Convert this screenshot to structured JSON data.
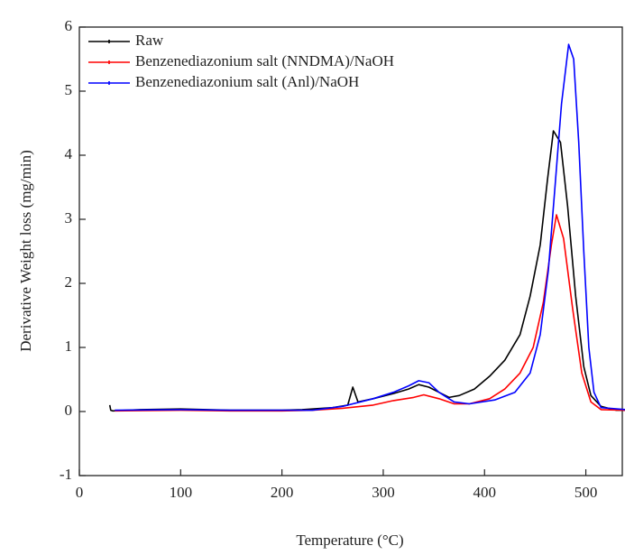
{
  "chart_data": {
    "type": "line",
    "x_label": "Temperature (°C)",
    "y_label": "Derivative Weight loss (mg/min)",
    "xlim": [
      0,
      536
    ],
    "ylim": [
      -1,
      6
    ],
    "xticks": [
      0,
      100,
      200,
      300,
      400,
      500
    ],
    "yticks": [
      -1,
      0,
      1,
      2,
      3,
      4,
      5,
      6
    ],
    "grid": false,
    "legend": "top-left",
    "series": [
      {
        "name": "Raw",
        "color": "#000000",
        "x": [
          30,
          31,
          33,
          60,
          100,
          150,
          200,
          220,
          250,
          265,
          270,
          275,
          290,
          310,
          325,
          335,
          345,
          355,
          365,
          375,
          390,
          405,
          420,
          435,
          445,
          455,
          462,
          468,
          475,
          482,
          490,
          498,
          505,
          515,
          530,
          540
        ],
        "values": [
          0.1,
          0.02,
          0.01,
          0.03,
          0.04,
          0.02,
          0.02,
          0.03,
          0.06,
          0.1,
          0.38,
          0.15,
          0.2,
          0.28,
          0.35,
          0.42,
          0.38,
          0.3,
          0.22,
          0.25,
          0.35,
          0.55,
          0.8,
          1.2,
          1.8,
          2.6,
          3.6,
          4.38,
          4.2,
          3.2,
          1.8,
          0.7,
          0.25,
          0.08,
          0.02,
          0.02
        ]
      },
      {
        "name": "Benzenediazonium salt (NNDMA)/NaOH",
        "color": "#ff0000",
        "x": [
          35,
          100,
          150,
          200,
          230,
          260,
          290,
          310,
          330,
          340,
          355,
          370,
          385,
          405,
          420,
          435,
          448,
          458,
          466,
          471,
          478,
          487,
          496,
          505,
          515,
          540
        ],
        "values": [
          0.01,
          0.02,
          0.01,
          0.01,
          0.02,
          0.05,
          0.1,
          0.17,
          0.22,
          0.26,
          0.2,
          0.12,
          0.12,
          0.2,
          0.35,
          0.6,
          1.0,
          1.7,
          2.6,
          3.07,
          2.7,
          1.6,
          0.6,
          0.15,
          0.03,
          0.02
        ]
      },
      {
        "name": "Benzenediazonium salt (Anl)/NaOH",
        "color": "#0000ff",
        "x": [
          35,
          100,
          150,
          200,
          230,
          260,
          290,
          310,
          325,
          335,
          345,
          355,
          370,
          385,
          410,
          430,
          445,
          455,
          463,
          470,
          476,
          483,
          488,
          493,
          498,
          503,
          508,
          515,
          540
        ],
        "values": [
          0.02,
          0.03,
          0.02,
          0.02,
          0.02,
          0.08,
          0.2,
          0.3,
          0.4,
          0.48,
          0.45,
          0.3,
          0.15,
          0.12,
          0.18,
          0.3,
          0.6,
          1.2,
          2.2,
          3.6,
          4.8,
          5.73,
          5.5,
          4.2,
          2.5,
          1.0,
          0.3,
          0.06,
          0.03
        ]
      }
    ]
  }
}
